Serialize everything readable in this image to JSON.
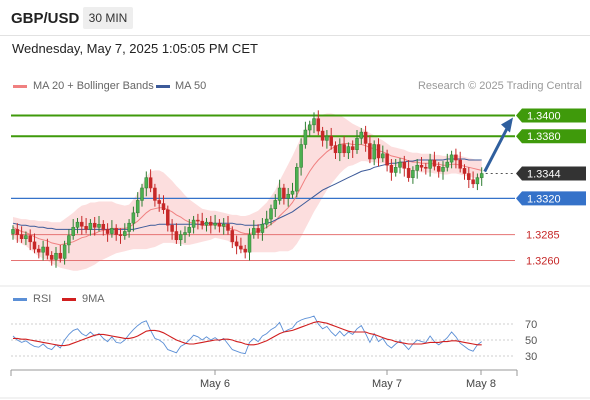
{
  "header": {
    "symbol": "GBP/USD",
    "timeframe": "30 MIN"
  },
  "timestamp": "Wednesday, May 7, 2025 1:05:05 PM CET",
  "legend": {
    "ma20_label": "MA 20 + Bollinger Bands",
    "ma50_label": "MA 50",
    "credit": "Research © 2025 Trading Central"
  },
  "rsi_legend": {
    "rsi_label": "RSI",
    "ma_label": "9MA"
  },
  "colors": {
    "candle_up": "#2e7d32",
    "candle_down": "#c62828",
    "candle_body_up": "#4caf50",
    "bollinger_fill": "#fbd3d3",
    "ma20": "#f08080",
    "ma50": "#3c5a99",
    "resistance": "#3f9a0b",
    "pivot": "#3572c9",
    "support": "#e57373",
    "current_price_bg": "#333333",
    "arrow": "#2f5f9e",
    "rsi": "#5b8fd6",
    "rsi_ma": "#d11f1f"
  },
  "chart_data": [
    {
      "type": "candlestick",
      "title": "GBP/USD",
      "x_tick_labels": [
        "May 6",
        "May 7",
        "May 8"
      ],
      "y_range": [
        1.3245,
        1.3415
      ],
      "current_price": 1.3344,
      "levels": [
        {
          "value": 1.34,
          "label": "1.3400",
          "kind": "resistance"
        },
        {
          "value": 1.338,
          "label": "1.3380",
          "kind": "resistance"
        },
        {
          "value": 1.3344,
          "label": "1.3344",
          "kind": "current"
        },
        {
          "value": 1.332,
          "label": "1.3320",
          "kind": "pivot"
        },
        {
          "value": 1.3285,
          "label": "1.3285",
          "kind": "support"
        },
        {
          "value": 1.326,
          "label": "1.3260",
          "kind": "support"
        }
      ],
      "close": [
        1.329,
        1.3285,
        1.3281,
        1.3284,
        1.3278,
        1.3271,
        1.3268,
        1.3273,
        1.3265,
        1.3261,
        1.3267,
        1.3262,
        1.3275,
        1.3284,
        1.3292,
        1.3297,
        1.3293,
        1.329,
        1.3296,
        1.3292,
        1.3295,
        1.329,
        1.3286,
        1.3291,
        1.3285,
        1.3284,
        1.3288,
        1.3296,
        1.3306,
        1.3318,
        1.333,
        1.334,
        1.333,
        1.3318,
        1.3315,
        1.3309,
        1.3294,
        1.3288,
        1.328,
        1.3285,
        1.3287,
        1.3292,
        1.3299,
        1.3298,
        1.3294,
        1.3297,
        1.3294,
        1.3296,
        1.3293,
        1.3295,
        1.3289,
        1.3278,
        1.3274,
        1.3271,
        1.3268,
        1.3285,
        1.3291,
        1.3287,
        1.3295,
        1.33,
        1.331,
        1.3318,
        1.333,
        1.332,
        1.3324,
        1.3327,
        1.335,
        1.3372,
        1.3386,
        1.3391,
        1.3397,
        1.3385,
        1.3376,
        1.338,
        1.3371,
        1.3364,
        1.3372,
        1.3364,
        1.337,
        1.3367,
        1.3378,
        1.3384,
        1.3373,
        1.3358,
        1.3372,
        1.3359,
        1.3363,
        1.3352,
        1.3345,
        1.335,
        1.3355,
        1.3349,
        1.334,
        1.3347,
        1.3352,
        1.335,
        1.3349,
        1.3357,
        1.3351,
        1.3346,
        1.335,
        1.3355,
        1.3362,
        1.3357,
        1.3349,
        1.3344,
        1.3338,
        1.3334,
        1.334,
        1.3344
      ],
      "ma20": [
        1.3292,
        1.329,
        1.3288,
        1.3287,
        1.3285,
        1.3283,
        1.3281,
        1.328,
        1.3279,
        1.3277,
        1.3276,
        1.3275,
        1.3276,
        1.3277,
        1.3278,
        1.328,
        1.3282,
        1.3283,
        1.3285,
        1.3286,
        1.3288,
        1.3289,
        1.329,
        1.3291,
        1.3291,
        1.3291,
        1.3291,
        1.3292,
        1.3295,
        1.3298,
        1.3302,
        1.3306,
        1.3309,
        1.331,
        1.3311,
        1.3311,
        1.3309,
        1.3307,
        1.3304,
        1.3302,
        1.3299,
        1.3297,
        1.3296,
        1.3295,
        1.3294,
        1.3294,
        1.3294,
        1.3295,
        1.3294,
        1.3293,
        1.3292,
        1.329,
        1.3289,
        1.3287,
        1.3286,
        1.3286,
        1.3287,
        1.3288,
        1.329,
        1.3292,
        1.3295,
        1.3298,
        1.3303,
        1.3307,
        1.3311,
        1.3316,
        1.3323,
        1.3331,
        1.3339,
        1.3346,
        1.3352,
        1.3357,
        1.3361,
        1.3365,
        1.3368,
        1.337,
        1.3372,
        1.3373,
        1.3373,
        1.3372,
        1.3372,
        1.3372,
        1.3371,
        1.3369,
        1.3368,
        1.3366,
        1.3365,
        1.3363,
        1.3361,
        1.336,
        1.3359,
        1.3358,
        1.3356,
        1.3355,
        1.3355,
        1.3354,
        1.3354,
        1.3354,
        1.3353,
        1.3353,
        1.3352,
        1.3352,
        1.3353,
        1.3353,
        1.3352,
        1.3351,
        1.335,
        1.3349,
        1.3348,
        1.3347
      ],
      "ma50": [
        1.3296,
        1.3295,
        1.3294,
        1.3294,
        1.3293,
        1.3293,
        1.3292,
        1.3292,
        1.3291,
        1.3291,
        1.329,
        1.329,
        1.329,
        1.329,
        1.329,
        1.329,
        1.329,
        1.329,
        1.329,
        1.329,
        1.329,
        1.329,
        1.329,
        1.329,
        1.329,
        1.329,
        1.329,
        1.329,
        1.329,
        1.3291,
        1.3292,
        1.3293,
        1.3294,
        1.3294,
        1.3295,
        1.3295,
        1.3295,
        1.3295,
        1.3295,
        1.3295,
        1.3295,
        1.3295,
        1.3295,
        1.3295,
        1.3295,
        1.3296,
        1.3296,
        1.3296,
        1.3296,
        1.3296,
        1.3296,
        1.3296,
        1.3295,
        1.3295,
        1.3294,
        1.3294,
        1.3294,
        1.3294,
        1.3295,
        1.3296,
        1.3297,
        1.3299,
        1.3301,
        1.3303,
        1.3305,
        1.3307,
        1.331,
        1.3313,
        1.3316,
        1.3319,
        1.3322,
        1.3325,
        1.3328,
        1.333,
        1.3332,
        1.3334,
        1.3336,
        1.3338,
        1.334,
        1.3342,
        1.3344,
        1.3346,
        1.3347,
        1.3348,
        1.335,
        1.3351,
        1.3352,
        1.3353,
        1.3354,
        1.3354,
        1.3355,
        1.3355,
        1.3356,
        1.3356,
        1.3357,
        1.3357,
        1.3357,
        1.3357,
        1.3357,
        1.3357,
        1.3357,
        1.3358,
        1.3358,
        1.3358,
        1.3358,
        1.3358,
        1.3357,
        1.3357,
        1.3357,
        1.3357
      ],
      "bollinger_width": [
        0.001,
        0.0011,
        0.0012,
        0.0013,
        0.0014,
        0.0016,
        0.0017,
        0.0018,
        0.0019,
        0.002,
        0.0021,
        0.0022,
        0.0024,
        0.0026,
        0.0028,
        0.003,
        0.0031,
        0.0031,
        0.0031,
        0.003,
        0.0029,
        0.0028,
        0.0027,
        0.0026,
        0.0024,
        0.0023,
        0.0022,
        0.0022,
        0.0024,
        0.0027,
        0.0031,
        0.0035,
        0.0037,
        0.0037,
        0.0036,
        0.0034,
        0.0032,
        0.003,
        0.0028,
        0.0026,
        0.0024,
        0.0022,
        0.002,
        0.0018,
        0.0016,
        0.0015,
        0.0014,
        0.0013,
        0.0013,
        0.0013,
        0.0013,
        0.0014,
        0.0015,
        0.0016,
        0.0017,
        0.0018,
        0.0019,
        0.002,
        0.0022,
        0.0024,
        0.0027,
        0.003,
        0.0034,
        0.0038,
        0.0042,
        0.0045,
        0.0047,
        0.0048,
        0.0048,
        0.0047,
        0.0045,
        0.0043,
        0.004,
        0.0037,
        0.0034,
        0.0031,
        0.0028,
        0.0025,
        0.0022,
        0.002,
        0.0018,
        0.0016,
        0.0015,
        0.0014,
        0.0013,
        0.0012,
        0.0011,
        0.001,
        0.0009,
        0.0009,
        0.0009,
        0.0009,
        0.0009,
        0.0009,
        0.0009,
        0.0009,
        0.0009,
        0.0009,
        0.0009,
        0.0009,
        0.0009,
        0.0009,
        0.0009,
        0.0009,
        0.0009,
        0.0009,
        0.0009,
        0.0009,
        0.0009,
        0.0009
      ],
      "forecast_target": 1.34
    },
    {
      "type": "line",
      "title": "RSI",
      "y_tick_labels": [
        "70",
        "50",
        "30"
      ],
      "y_range": [
        20,
        85
      ],
      "series": [
        {
          "name": "RSI",
          "values": [
            55,
            50,
            47,
            49,
            45,
            42,
            41,
            45,
            40,
            38,
            44,
            40,
            50,
            57,
            62,
            64,
            58,
            55,
            60,
            55,
            58,
            52,
            48,
            54,
            47,
            46,
            50,
            57,
            63,
            68,
            72,
            74,
            62,
            52,
            50,
            46,
            38,
            36,
            34,
            42,
            45,
            50,
            56,
            54,
            50,
            54,
            50,
            53,
            49,
            52,
            45,
            38,
            36,
            34,
            33,
            47,
            52,
            48,
            55,
            58,
            63,
            66,
            72,
            60,
            63,
            65,
            72,
            75,
            77,
            78,
            80,
            70,
            64,
            67,
            60,
            55,
            61,
            55,
            60,
            57,
            64,
            68,
            58,
            47,
            58,
            48,
            52,
            44,
            40,
            45,
            49,
            44,
            38,
            45,
            50,
            48,
            47,
            55,
            48,
            44,
            48,
            53,
            60,
            54,
            46,
            42,
            38,
            36,
            44,
            48
          ]
        },
        {
          "name": "9MA",
          "values": [
            52,
            52,
            51,
            51,
            50,
            49,
            48,
            47,
            46,
            45,
            44,
            43,
            43,
            44,
            46,
            48,
            50,
            52,
            54,
            56,
            57,
            57,
            56,
            55,
            54,
            53,
            52,
            52,
            53,
            55,
            58,
            61,
            62,
            62,
            61,
            59,
            56,
            53,
            50,
            48,
            46,
            45,
            45,
            46,
            47,
            48,
            49,
            50,
            50,
            51,
            51,
            50,
            48,
            47,
            45,
            44,
            44,
            45,
            47,
            49,
            52,
            55,
            58,
            60,
            61,
            62,
            64,
            66,
            68,
            70,
            72,
            73,
            72,
            71,
            69,
            67,
            65,
            63,
            61,
            60,
            60,
            60,
            60,
            58,
            57,
            55,
            53,
            51,
            50,
            48,
            47,
            46,
            45,
            45,
            45,
            45,
            46,
            47,
            47,
            47,
            48,
            48,
            49,
            49,
            48,
            47,
            46,
            45,
            44,
            44
          ]
        }
      ]
    }
  ]
}
